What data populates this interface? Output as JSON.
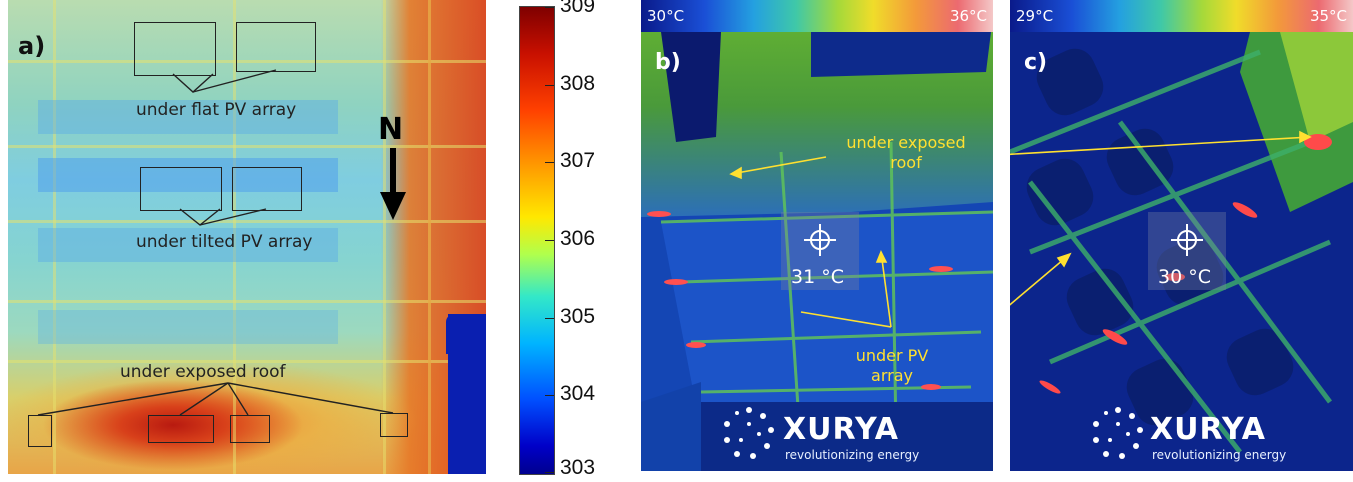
{
  "panel_a": {
    "letter": "a)",
    "labels": {
      "flat": "under flat PV array",
      "tilted": "under tilted PV array",
      "exposed": "under exposed roof"
    },
    "north": "N",
    "colorbar_ticks": [
      "309",
      "308",
      "307",
      "306",
      "305",
      "304",
      "303"
    ]
  },
  "panel_b": {
    "letter": "b)",
    "scale_min": "30°C",
    "scale_max": "36°C",
    "label_exposed_1": "under exposed",
    "label_exposed_2": "roof",
    "label_pv_1": "under PV",
    "label_pv_2": "array",
    "center_temp": "31 °C",
    "logo": "XURYA",
    "logo_sub": "revolutionizing energy"
  },
  "panel_c": {
    "letter": "c)",
    "scale_min": "29°C",
    "scale_max": "35°C",
    "center_temp": "30 °C",
    "logo": "XURYA",
    "logo_sub": "revolutionizing energy"
  },
  "colors": {
    "annotation_yellow": "#ffe030",
    "hot": "#c81000",
    "cold": "#0000c8"
  }
}
